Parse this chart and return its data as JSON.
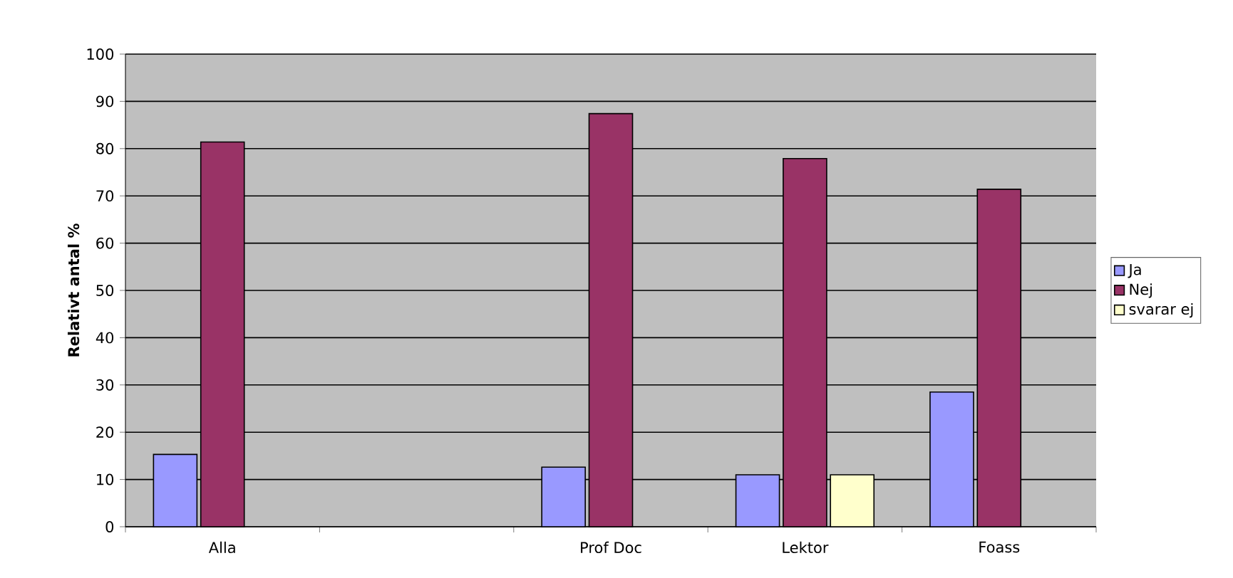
{
  "chart_data": {
    "type": "bar",
    "ylabel": "Relativt antal %",
    "categories": [
      "Alla",
      null,
      "Prof Doc",
      "Lektor",
      "Foass"
    ],
    "series": [
      {
        "name": "Ja",
        "color": "#9999ff",
        "values": [
          15.3,
          null,
          12.6,
          11.0,
          28.5
        ]
      },
      {
        "name": "Nej",
        "color": "#993366",
        "values": [
          81.4,
          null,
          87.4,
          77.9,
          71.4
        ]
      },
      {
        "name": "svarar ej",
        "color": "#ffffcc",
        "values": [
          null,
          null,
          null,
          11.0,
          null
        ]
      }
    ],
    "ylim": [
      0,
      100
    ],
    "yticks": [
      0,
      10,
      20,
      30,
      40,
      50,
      60,
      70,
      80,
      90,
      100
    ],
    "grid": "y",
    "legend": "right"
  }
}
